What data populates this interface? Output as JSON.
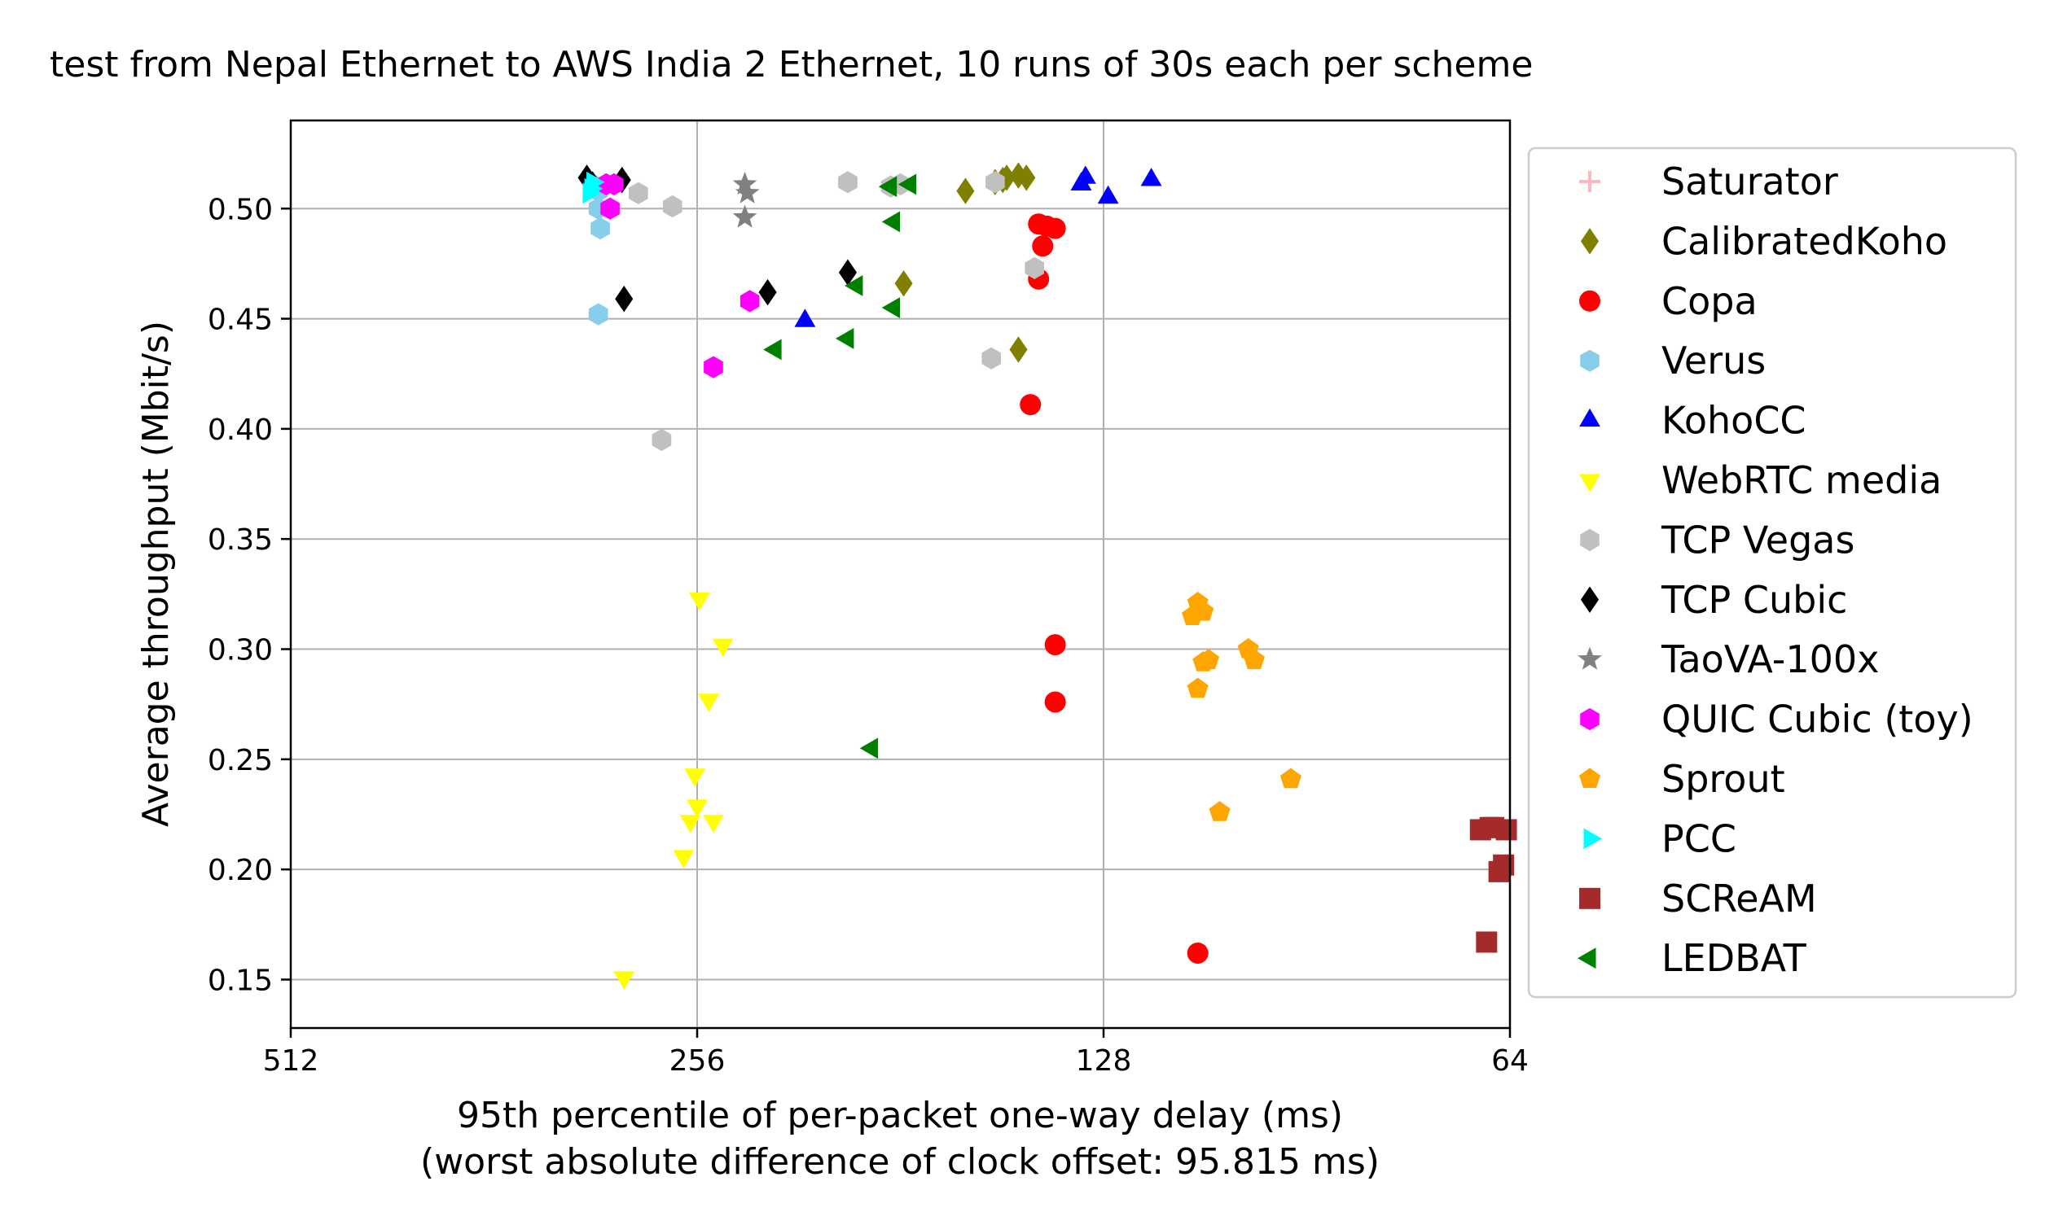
{
  "chart_data": {
    "type": "scatter",
    "title": "test from Nepal Ethernet to AWS India 2 Ethernet, 10 runs of 30s each per scheme",
    "xlabel": "95th percentile of per-packet one-way delay (ms)",
    "xlabel2": "(worst absolute difference of clock offset: 95.815 ms)",
    "ylabel": "Average throughput (Mbit/s)",
    "x_scale": "log2",
    "x_inverted": true,
    "xlim": [
      512,
      64
    ],
    "ylim": [
      0.128,
      0.54
    ],
    "xticks": [
      512,
      256,
      128,
      64
    ],
    "xtick_labels": [
      "512",
      "256",
      "128",
      "64"
    ],
    "yticks": [
      0.15,
      0.2,
      0.25,
      0.3,
      0.35,
      0.4,
      0.45,
      0.5
    ],
    "ytick_labels": [
      "0.15",
      "0.20",
      "0.25",
      "0.30",
      "0.35",
      "0.40",
      "0.45",
      "0.50"
    ],
    "grid": true,
    "legend_position": "outside-right",
    "series": [
      {
        "name": "Saturator",
        "marker": "plus",
        "color": "#ffb6c1",
        "points": []
      },
      {
        "name": "CalibratedKoho",
        "marker": "diamond",
        "color": "#808000",
        "points": [
          [
            162,
            0.508
          ],
          [
            154,
            0.512
          ],
          [
            151,
            0.514
          ],
          [
            148,
            0.515
          ],
          [
            146,
            0.514
          ],
          [
            180,
            0.466
          ],
          [
            148,
            0.436
          ],
          [
            152,
            0.513
          ]
        ]
      },
      {
        "name": "Copa",
        "marker": "circle",
        "color": "#ff0000",
        "points": [
          [
            143,
            0.493
          ],
          [
            141,
            0.492
          ],
          [
            139,
            0.491
          ],
          [
            142,
            0.483
          ],
          [
            143,
            0.468
          ],
          [
            145,
            0.411
          ],
          [
            139,
            0.302
          ],
          [
            139,
            0.276
          ],
          [
            109,
            0.162
          ]
        ]
      },
      {
        "name": "Verus",
        "marker": "hexagon",
        "color": "#87ceeb",
        "points": [
          [
            303,
            0.5
          ],
          [
            302,
            0.491
          ],
          [
            303,
            0.452
          ],
          [
            303,
            0.508
          ]
        ]
      },
      {
        "name": "KohoCC",
        "marker": "triangle-up",
        "color": "#0000ff",
        "points": [
          [
            133,
            0.511
          ],
          [
            132,
            0.514
          ],
          [
            127,
            0.505
          ],
          [
            118,
            0.513
          ],
          [
            213,
            0.449
          ]
        ]
      },
      {
        "name": "WebRTC media",
        "marker": "triangle-down",
        "color": "#ffff00",
        "points": [
          [
            255,
            0.323
          ],
          [
            245,
            0.302
          ],
          [
            251,
            0.277
          ],
          [
            257,
            0.243
          ],
          [
            256,
            0.229
          ],
          [
            259,
            0.222
          ],
          [
            249,
            0.222
          ],
          [
            262,
            0.206
          ],
          [
            290,
            0.151
          ]
        ]
      },
      {
        "name": "TCP Vegas",
        "marker": "hexagon",
        "color": "#c0c0c0",
        "points": [
          [
            283,
            0.507
          ],
          [
            267,
            0.501
          ],
          [
            272,
            0.395
          ],
          [
            198,
            0.512
          ],
          [
            184,
            0.51
          ],
          [
            181,
            0.511
          ],
          [
            154,
            0.512
          ],
          [
            155,
            0.432
          ],
          [
            144,
            0.473
          ],
          [
            306,
            0.511
          ]
        ]
      },
      {
        "name": "TCP Cubic",
        "marker": "diamond",
        "color": "#000000",
        "points": [
          [
            309,
            0.514
          ],
          [
            306,
            0.511
          ],
          [
            291,
            0.513
          ],
          [
            290,
            0.459
          ],
          [
            227,
            0.462
          ],
          [
            198,
            0.471
          ]
        ]
      },
      {
        "name": "TaoVA-100x",
        "marker": "star",
        "color": "#808080",
        "points": [
          [
            236,
            0.511
          ],
          [
            235,
            0.507
          ],
          [
            236,
            0.496
          ]
        ]
      },
      {
        "name": "QUIC Cubic (toy)",
        "marker": "hexagon",
        "color": "#ff00ff",
        "points": [
          [
            299,
            0.511
          ],
          [
            295,
            0.511
          ],
          [
            297,
            0.5
          ],
          [
            234,
            0.458
          ],
          [
            249,
            0.428
          ]
        ]
      },
      {
        "name": "Sprout",
        "marker": "pentagon",
        "color": "#ffa500",
        "points": [
          [
            109,
            0.321
          ],
          [
            110,
            0.315
          ],
          [
            108,
            0.317
          ],
          [
            107,
            0.295
          ],
          [
            108,
            0.294
          ],
          [
            109,
            0.282
          ],
          [
            100,
            0.3
          ],
          [
            99,
            0.295
          ],
          [
            93,
            0.241
          ],
          [
            105,
            0.226
          ]
        ]
      },
      {
        "name": "PCC",
        "marker": "triangle-right",
        "color": "#00ffff",
        "points": [
          [
            306,
            0.512
          ],
          [
            307,
            0.509
          ],
          [
            308,
            0.507
          ]
        ]
      },
      {
        "name": "SCReAM",
        "marker": "square",
        "color": "#a52a2a",
        "points": [
          [
            67.3,
            0.218
          ],
          [
            66.2,
            0.219
          ],
          [
            65.8,
            0.219
          ],
          [
            64.4,
            0.218
          ],
          [
            65.2,
            0.199
          ],
          [
            64.7,
            0.202
          ],
          [
            66.6,
            0.167
          ]
        ]
      },
      {
        "name": "LEDBAT",
        "marker": "triangle-left",
        "color": "#008000",
        "points": [
          [
            184,
            0.51
          ],
          [
            178,
            0.511
          ],
          [
            183,
            0.494
          ],
          [
            195,
            0.465
          ],
          [
            183,
            0.455
          ],
          [
            198,
            0.441
          ],
          [
            224,
            0.436
          ],
          [
            190,
            0.255
          ]
        ]
      }
    ]
  }
}
